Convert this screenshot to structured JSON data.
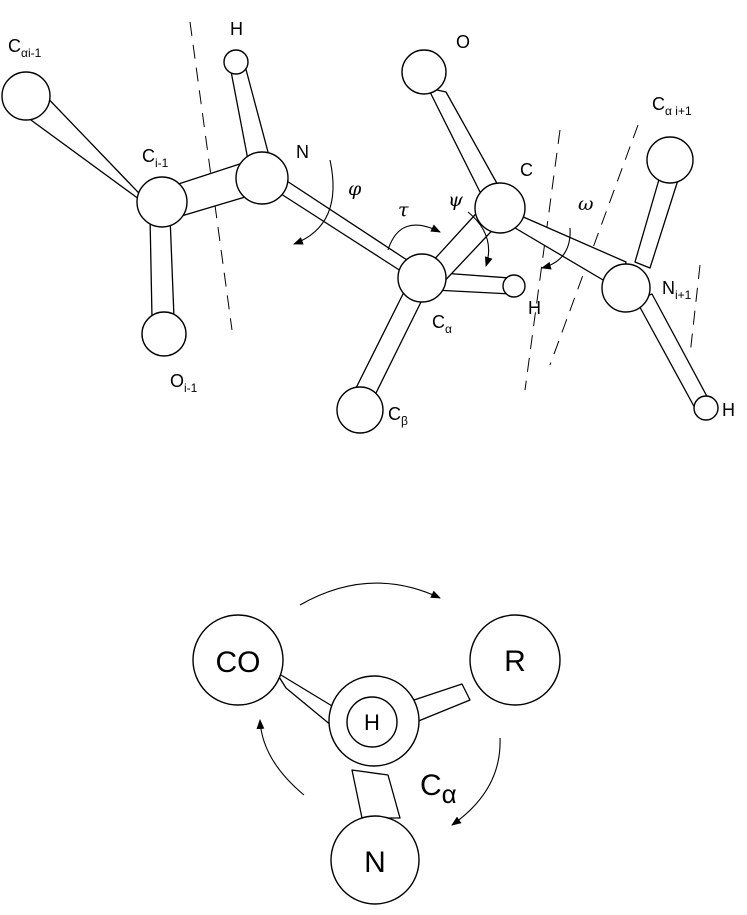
{
  "top_diagram": {
    "labels": {
      "ca_prev": {
        "main": "C",
        "sub": "αi-1"
      },
      "c_prev": {
        "main": "C",
        "sub": "i-1"
      },
      "o_prev": {
        "main": "O",
        "sub": "i-1"
      },
      "h_n": "H",
      "n": "N",
      "ca": {
        "main": "C",
        "sub": "α"
      },
      "cb": {
        "main": "C",
        "sub": "β"
      },
      "h_ca": "H",
      "c": "C",
      "o": "O",
      "n_next": {
        "main": "N",
        "sub": "i+1"
      },
      "ca_next": {
        "main": "C",
        "sub": "α i+1"
      },
      "h_next": "H"
    },
    "angles": {
      "phi": "φ",
      "psi": "ψ",
      "tau": "τ",
      "omega": "ω"
    }
  },
  "bottom_diagram": {
    "co": "CO",
    "r": "R",
    "n": "N",
    "h": "H",
    "ca": {
      "main": "C",
      "sub": "α"
    }
  }
}
